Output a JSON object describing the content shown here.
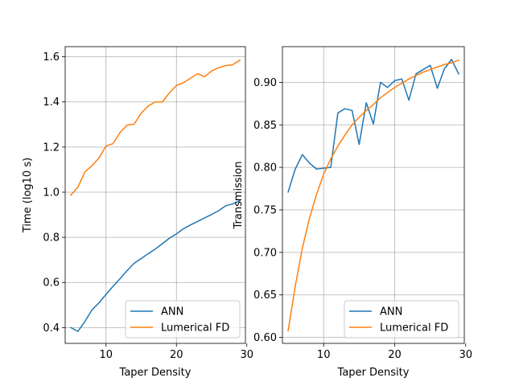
{
  "chart_data": [
    {
      "type": "line",
      "xlabel": "Taper Density",
      "ylabel": "Time (log10 s)",
      "xlim": [
        4.2,
        29.8
      ],
      "ylim": [
        0.33,
        1.645
      ],
      "xticks": [
        10,
        20,
        30
      ],
      "yticks": [
        0.4,
        0.6,
        0.8,
        1.0,
        1.2,
        1.4,
        1.6
      ],
      "ytick_labels": [
        "0.4",
        "0.6",
        "0.8",
        "1.0",
        "1.2",
        "1.4",
        "1.6"
      ],
      "grid": true,
      "legend_position": "lower-right",
      "x": [
        5,
        6,
        7,
        8,
        9,
        10,
        11,
        12,
        13,
        14,
        15,
        16,
        17,
        18,
        19,
        20,
        21,
        22,
        23,
        24,
        25,
        26,
        27,
        28,
        29
      ],
      "series": [
        {
          "name": "ANN",
          "color": "#1f77b4",
          "values": [
            0.4,
            0.383,
            0.427,
            0.478,
            0.51,
            0.547,
            0.583,
            0.617,
            0.653,
            0.685,
            0.706,
            0.728,
            0.748,
            0.772,
            0.796,
            0.815,
            0.838,
            0.855,
            0.87,
            0.886,
            0.901,
            0.918,
            0.94,
            0.948,
            0.962
          ]
        },
        {
          "name": "Lumerical FD",
          "color": "#ff7f0e",
          "values": [
            0.987,
            1.022,
            1.09,
            1.117,
            1.152,
            1.205,
            1.215,
            1.265,
            1.297,
            1.302,
            1.35,
            1.382,
            1.4,
            1.4,
            1.44,
            1.473,
            1.485,
            1.505,
            1.525,
            1.512,
            1.537,
            1.552,
            1.561,
            1.565,
            1.585
          ]
        }
      ]
    },
    {
      "type": "line",
      "xlabel": "Taper Density",
      "ylabel": "Transmission",
      "xlim": [
        4.2,
        29.8
      ],
      "ylim": [
        0.593,
        0.942
      ],
      "xticks": [
        10,
        20,
        30
      ],
      "yticks": [
        0.6,
        0.65,
        0.7,
        0.75,
        0.8,
        0.85,
        0.9
      ],
      "ytick_labels": [
        "0.60",
        "0.65",
        "0.70",
        "0.75",
        "0.80",
        "0.85",
        "0.90"
      ],
      "grid": true,
      "legend_position": "lower-right",
      "x": [
        5,
        6,
        7,
        8,
        9,
        10,
        11,
        12,
        13,
        14,
        15,
        16,
        17,
        18,
        19,
        20,
        21,
        22,
        23,
        24,
        25,
        26,
        27,
        28,
        29
      ],
      "series": [
        {
          "name": "ANN",
          "color": "#1f77b4",
          "values": [
            0.771,
            0.798,
            0.815,
            0.805,
            0.798,
            0.799,
            0.8,
            0.864,
            0.869,
            0.867,
            0.827,
            0.876,
            0.851,
            0.9,
            0.894,
            0.902,
            0.904,
            0.879,
            0.91,
            0.915,
            0.92,
            0.893,
            0.916,
            0.927,
            0.91
          ]
        },
        {
          "name": "Lumerical FD",
          "color": "#ff7f0e",
          "values": [
            0.608,
            0.66,
            0.705,
            0.74,
            0.768,
            0.792,
            0.81,
            0.825,
            0.838,
            0.85,
            0.859,
            0.867,
            0.874,
            0.882,
            0.888,
            0.894,
            0.899,
            0.904,
            0.908,
            0.912,
            0.915,
            0.918,
            0.921,
            0.923,
            0.926
          ]
        }
      ]
    }
  ]
}
